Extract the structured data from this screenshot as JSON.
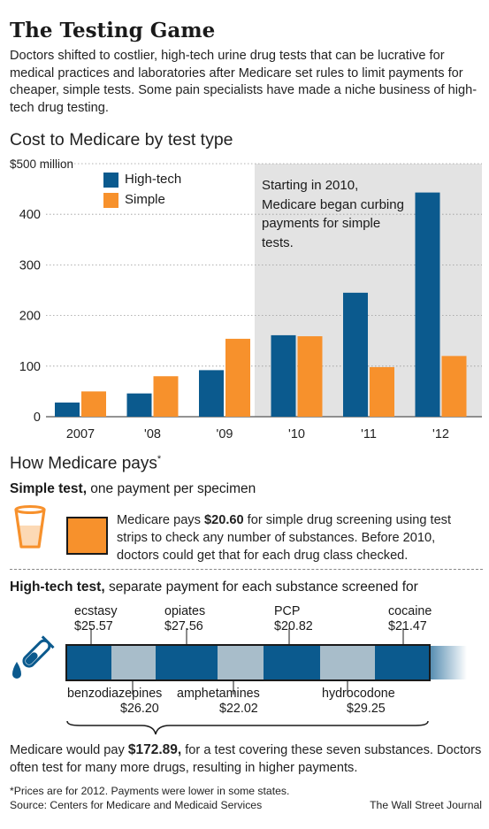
{
  "title": "The Testing Game",
  "intro": "Doctors shifted to costlier, high-tech urine drug tests that can be lucrative for medical practices and laboratories after Medicare set rules to limit payments for cheaper, simple tests. Some pain specialists have made a niche business of high-tech drug testing.",
  "chart_title": "Cost to Medicare by test type",
  "chart_note": "Starting in 2010, Medicare began curbing payments for simple tests.",
  "colors": {
    "hightech": "#0b5a8e",
    "simple": "#f7912c",
    "shade": "#e3e3e3",
    "light_segment": "#a8bdca"
  },
  "chart_data": {
    "type": "bar",
    "title": "Cost to Medicare by test type",
    "categories": [
      "2007",
      "'08",
      "'09",
      "'10",
      "'11",
      "'12"
    ],
    "series": [
      {
        "name": "High-tech",
        "values": [
          28,
          46,
          92,
          161,
          245,
          443
        ]
      },
      {
        "name": "Simple",
        "values": [
          50,
          80,
          154,
          159,
          98,
          120
        ]
      }
    ],
    "ylim": [
      0,
      500
    ],
    "yticks": [
      0,
      100,
      200,
      300,
      400,
      500
    ],
    "ytick_labels": [
      "0",
      "100",
      "200",
      "300",
      "400",
      "$500 million"
    ],
    "legend_position": "top-left",
    "annotation": "Starting in 2010, Medicare began curbing payments for simple tests."
  },
  "pays": {
    "title": "How Medicare pays",
    "title_mark": "*",
    "simple_head_bold": "Simple test,",
    "simple_head_rest": " one payment per specimen",
    "simple_text_pre": "Medicare pays ",
    "simple_text_amount": "$20.60",
    "simple_text_post": " for simple drug screening using test strips to check any number of substances. Before 2010, doctors could get that for each drug class checked.",
    "hightech_head_bold": "High-tech test,",
    "hightech_head_rest": " separate payment for each substance screened for",
    "drugs_top": [
      {
        "name": "ecstasy",
        "price": "$25.57"
      },
      {
        "name": "opiates",
        "price": "$27.56"
      },
      {
        "name": "PCP",
        "price": "$20.82"
      },
      {
        "name": "cocaine",
        "price": "$21.47"
      }
    ],
    "drugs_bottom": [
      {
        "name": "benzodiazepines",
        "price": "$26.20"
      },
      {
        "name": "amphetamines",
        "price": "$22.02"
      },
      {
        "name": "hydrocodone",
        "price": "$29.25"
      }
    ],
    "total_pre": "Medicare would pay ",
    "total_amount": "$172.89,",
    "total_post": " for a test covering these seven substances. Doctors often test for many more drugs, resulting in higher payments."
  },
  "footer": {
    "note": "*Prices are for 2012. Payments were lower in some states.",
    "source": "Source: Centers for Medicare and Medicaid Services",
    "credit": "The Wall Street Journal"
  }
}
